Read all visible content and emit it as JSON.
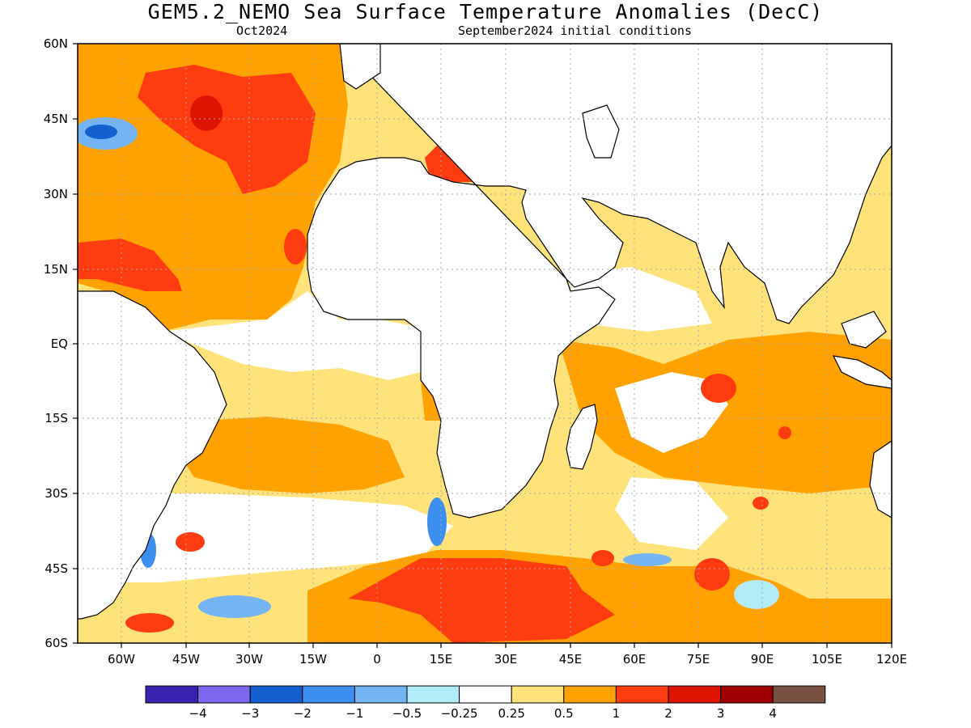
{
  "title": "GEM5.2_NEMO Sea Surface Temperature Anomalies (DecC)",
  "subtitle_left": "Oct2024",
  "subtitle_right": "September2024 initial conditions",
  "lat_labels": [
    "60N",
    "45N",
    "30N",
    "15N",
    "EQ",
    "15S",
    "30S",
    "45S",
    "60S"
  ],
  "lon_labels": [
    "60W",
    "45W",
    "30W",
    "15W",
    "0",
    "15E",
    "30E",
    "45E",
    "60E",
    "75E",
    "90E",
    "105E",
    "120E"
  ],
  "legend": {
    "colors": [
      "#3a22b0",
      "#7b68ee",
      "#1560d0",
      "#3c8ef0",
      "#74b4f4",
      "#b2ecf8",
      "#ffffff",
      "#ffe37a",
      "#ffa200",
      "#ff3b10",
      "#dc1400",
      "#a00000",
      "#7a5040"
    ],
    "labels": [
      "-4",
      "-3",
      "-2",
      "-1",
      "-0.5",
      "-0.25",
      "0.25",
      "0.5",
      "1",
      "2",
      "3",
      "4"
    ]
  },
  "colors": {
    "land": "#ffffff",
    "coast": "#000000",
    "grid": "#aaaaaa"
  }
}
